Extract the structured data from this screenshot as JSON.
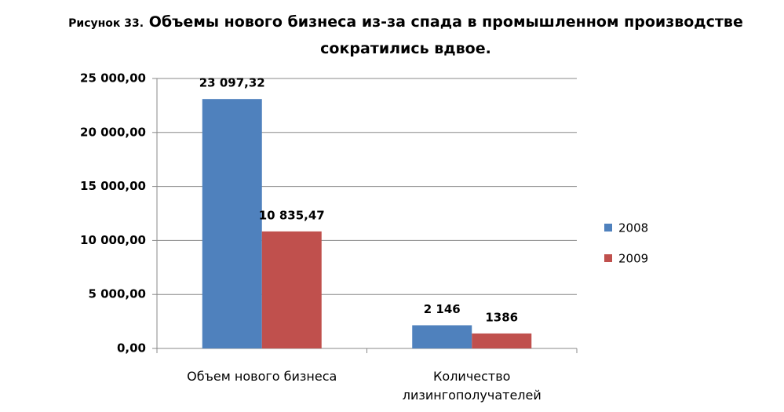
{
  "chart_data": {
    "type": "bar",
    "figure_label": "Рисунок 33.",
    "title": "Объемы нового бизнеса из-за спада в промышленном производстве сократились вдвое.",
    "categories": [
      "Объем нового бизнеса",
      "Количество лизингополучателей"
    ],
    "series": [
      {
        "name": "2008",
        "color": "#4f81bd",
        "values": [
          23097.32,
          2146
        ],
        "value_labels": [
          "23 097,32",
          "2 146"
        ]
      },
      {
        "name": "2009",
        "color": "#c0504d",
        "values": [
          10835.47,
          1386
        ],
        "value_labels": [
          "10 835,47",
          "1386"
        ]
      }
    ],
    "ylim": [
      0,
      25000
    ],
    "yticks": [
      {
        "value": 0,
        "label": "0,00"
      },
      {
        "value": 5000,
        "label": "5 000,00"
      },
      {
        "value": 10000,
        "label": "10 000,00"
      },
      {
        "value": 15000,
        "label": "15 000,00"
      },
      {
        "value": 20000,
        "label": "20 000,00"
      },
      {
        "value": 25000,
        "label": "25 000,00"
      }
    ],
    "grid": true,
    "legend": "right"
  }
}
